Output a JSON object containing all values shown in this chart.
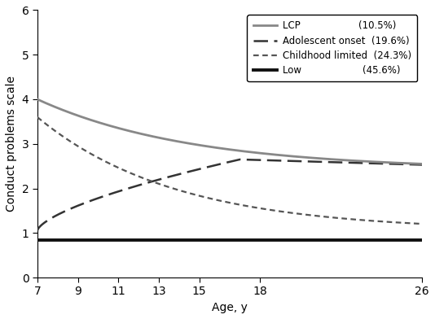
{
  "x_ticks": [
    7,
    9,
    11,
    13,
    15,
    18,
    26
  ],
  "ylim": [
    0,
    6
  ],
  "xlim": [
    7,
    26
  ],
  "ylabel": "Conduct problems scale",
  "xlabel": "Age, y",
  "lines": [
    {
      "label": "LCP",
      "pct": "(10.5%)",
      "color": "#888888",
      "linestyle": "solid",
      "linewidth": 2.0
    },
    {
      "label": "Adolescent onset",
      "pct": "(19.6%)",
      "color": "#333333",
      "linestyle": "dashed_long",
      "linewidth": 1.8
    },
    {
      "label": "Childhood limited",
      "pct": "(24.3%)",
      "color": "#555555",
      "linestyle": "dashed_short",
      "linewidth": 1.6
    },
    {
      "label": "Low",
      "pct": "(45.6%)",
      "color": "#111111",
      "linestyle": "solid",
      "linewidth": 2.8
    }
  ],
  "background_color": "#ffffff",
  "yticks": [
    0,
    1,
    2,
    3,
    4,
    5,
    6
  ],
  "figsize": [
    5.34,
    3.92
  ],
  "dpi": 100
}
